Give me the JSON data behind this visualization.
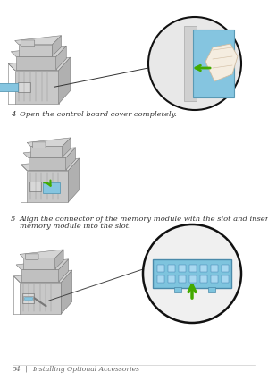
{
  "bg_color": "#ffffff",
  "page_width": 3.0,
  "page_height": 4.26,
  "step4_num": "4",
  "step4_text": "Open the control board cover completely.",
  "step5_num": "5",
  "step5_text_line1": "Align the connector of the memory module with the slot and insert the",
  "step5_text_line2": "memory module into the slot.",
  "footer_page": "54",
  "footer_sep": "|",
  "footer_text": "Installing Optional Accessories",
  "printer_body": "#c8c8c8",
  "printer_mid": "#b0b0b0",
  "printer_dark": "#909090",
  "printer_darker": "#787878",
  "printer_shadow": "#a0a0a0",
  "cover_blue": "#85c5e0",
  "cover_blue_dark": "#5a9ab5",
  "arrow_green": "#44aa00",
  "arrow_green_dark": "#227700",
  "circle_bg": "#e8e8e8",
  "circle_border": "#222222",
  "ram_blue": "#7ec4de",
  "ram_edge": "#4a8aaa",
  "text_color": "#333333",
  "footer_color": "#666666",
  "line_color": "#cccccc",
  "hand_color": "#f5ede0",
  "hand_edge": "#d0bba0"
}
